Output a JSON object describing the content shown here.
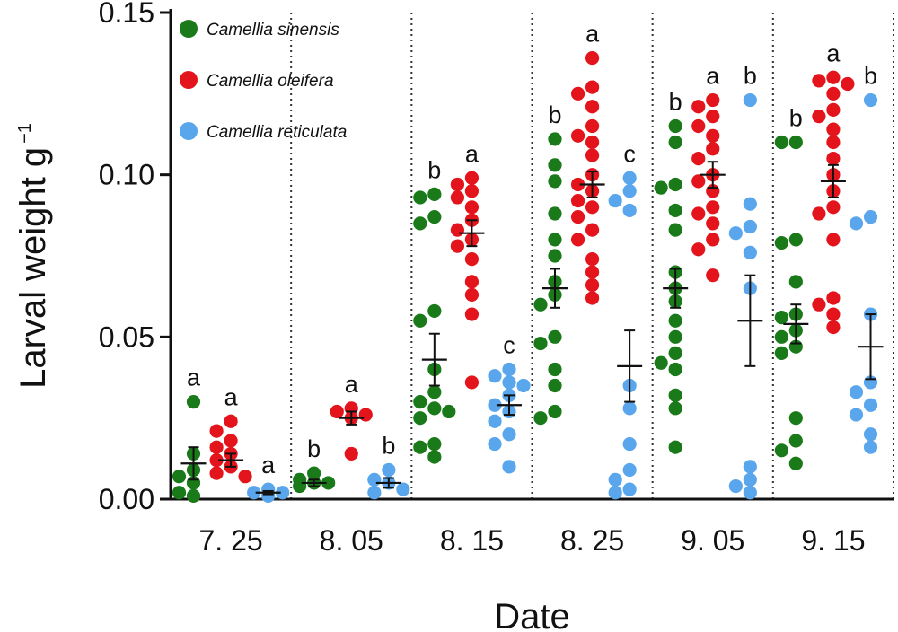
{
  "chart_data": {
    "type": "scatter",
    "xlabel": "Date",
    "ylabel": "Larval weight g",
    "ylabel_superscript": "−1",
    "ylim": [
      0,
      0.15
    ],
    "yticks": [
      {
        "value": 0.0,
        "label": "0.00"
      },
      {
        "value": 0.05,
        "label": "0.05"
      },
      {
        "value": 0.1,
        "label": "0.10"
      },
      {
        "value": 0.15,
        "label": "0.15"
      }
    ],
    "categories": [
      "7. 25",
      "8. 05",
      "8. 15",
      "8. 25",
      "9. 05",
      "9. 15"
    ],
    "series": [
      {
        "name": "Camellia sinensis",
        "color": "#1a7a1a",
        "groups": [
          {
            "points": [
              0.03,
              0.014,
              0.009,
              0.007,
              0.005,
              0.002,
              0.001
            ],
            "mean": 0.011,
            "err": 0.005,
            "letter": "a"
          },
          {
            "points": [
              0.008,
              0.006,
              0.005,
              0.005,
              0.004
            ],
            "mean": 0.005,
            "err": 0.001,
            "letter": "b"
          },
          {
            "points": [
              0.094,
              0.093,
              0.087,
              0.085,
              0.058,
              0.055,
              0.04,
              0.033,
              0.03,
              0.028,
              0.027,
              0.025,
              0.017,
              0.016,
              0.013
            ],
            "mean": 0.043,
            "err": 0.008,
            "letter": "b"
          },
          {
            "points": [
              0.111,
              0.103,
              0.098,
              0.088,
              0.08,
              0.075,
              0.067,
              0.063,
              0.06,
              0.05,
              0.048,
              0.04,
              0.035,
              0.027,
              0.025
            ],
            "mean": 0.065,
            "err": 0.006,
            "letter": "b"
          },
          {
            "points": [
              0.115,
              0.11,
              0.097,
              0.096,
              0.089,
              0.083,
              0.07,
              0.065,
              0.061,
              0.055,
              0.05,
              0.045,
              0.042,
              0.04,
              0.032,
              0.028,
              0.016
            ],
            "mean": 0.065,
            "err": 0.006,
            "letter": "b"
          },
          {
            "points": [
              0.11,
              0.11,
              0.08,
              0.079,
              0.067,
              0.057,
              0.056,
              0.052,
              0.05,
              0.047,
              0.045,
              0.025,
              0.018,
              0.015,
              0.011
            ],
            "mean": 0.054,
            "err": 0.006,
            "letter": "b"
          }
        ]
      },
      {
        "name": "Camellia oleifera",
        "color": "#e3141b",
        "groups": [
          {
            "points": [
              0.024,
              0.021,
              0.018,
              0.016,
              0.014,
              0.012,
              0.01,
              0.008,
              0.007
            ],
            "mean": 0.012,
            "err": 0.002,
            "letter": "a"
          },
          {
            "points": [
              0.028,
              0.027,
              0.026,
              0.025,
              0.014
            ],
            "mean": 0.025,
            "err": 0.002,
            "letter": "a"
          },
          {
            "points": [
              0.099,
              0.097,
              0.095,
              0.093,
              0.09,
              0.086,
              0.083,
              0.08,
              0.078,
              0.074,
              0.067,
              0.063,
              0.057,
              0.036
            ],
            "mean": 0.082,
            "err": 0.004,
            "letter": "a"
          },
          {
            "points": [
              0.136,
              0.127,
              0.125,
              0.121,
              0.115,
              0.112,
              0.11,
              0.106,
              0.1,
              0.097,
              0.095,
              0.092,
              0.09,
              0.087,
              0.083,
              0.08,
              0.074,
              0.07,
              0.066,
              0.062
            ],
            "mean": 0.097,
            "err": 0.004,
            "letter": "a"
          },
          {
            "points": [
              0.123,
              0.121,
              0.118,
              0.115,
              0.112,
              0.108,
              0.105,
              0.1,
              0.098,
              0.095,
              0.09,
              0.088,
              0.085,
              0.08,
              0.077,
              0.069
            ],
            "mean": 0.1,
            "err": 0.004,
            "letter": "a"
          },
          {
            "points": [
              0.13,
              0.129,
              0.128,
              0.125,
              0.12,
              0.118,
              0.114,
              0.11,
              0.105,
              0.1,
              0.095,
              0.09,
              0.088,
              0.08,
              0.062,
              0.06,
              0.057,
              0.053
            ],
            "mean": 0.098,
            "err": 0.005,
            "letter": "a"
          }
        ]
      },
      {
        "name": "Camellia reticulata",
        "color": "#5aa6ec",
        "groups": [
          {
            "points": [
              0.003,
              0.002,
              0.002,
              0.001
            ],
            "mean": 0.002,
            "err": 0.0005,
            "letter": "a"
          },
          {
            "points": [
              0.009,
              0.006,
              0.005,
              0.003,
              0.002
            ],
            "mean": 0.005,
            "err": 0.0015,
            "letter": "b"
          },
          {
            "points": [
              0.04,
              0.038,
              0.036,
              0.035,
              0.032,
              0.029,
              0.027,
              0.024,
              0.02,
              0.017,
              0.01
            ],
            "mean": 0.029,
            "err": 0.003,
            "letter": "c"
          },
          {
            "points": [
              0.099,
              0.095,
              0.092,
              0.089,
              0.035,
              0.028,
              0.017,
              0.009,
              0.006,
              0.003,
              0.002
            ],
            "mean": 0.041,
            "err": 0.011,
            "letter": "c"
          },
          {
            "points": [
              0.123,
              0.091,
              0.084,
              0.082,
              0.076,
              0.065,
              0.01,
              0.006,
              0.004,
              0.002
            ],
            "mean": 0.055,
            "err": 0.014,
            "letter": "b"
          },
          {
            "points": [
              0.123,
              0.087,
              0.085,
              0.057,
              0.036,
              0.033,
              0.029,
              0.026,
              0.02,
              0.016
            ],
            "mean": 0.047,
            "err": 0.01,
            "letter": "b"
          }
        ]
      }
    ],
    "legend": {
      "position": "top-left",
      "entries": [
        "Camellia sinensis",
        "Camellia oleifera",
        "Camellia reticulata"
      ]
    },
    "separators": "dotted vertical lines between dates"
  }
}
